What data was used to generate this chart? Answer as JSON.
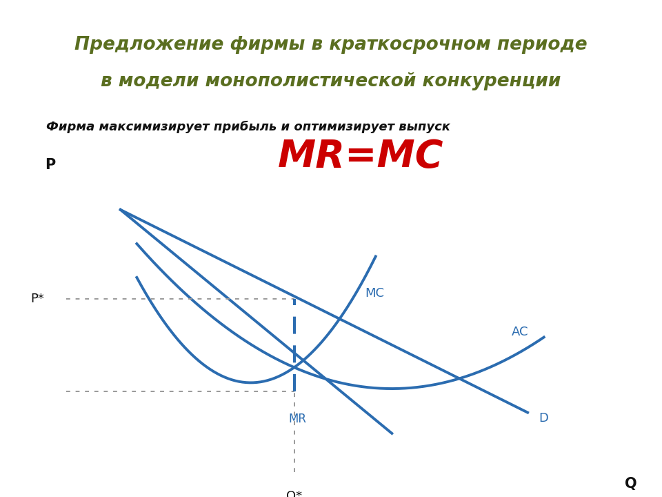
{
  "title_line1": "Предложение фирмы в краткосрочном периоде",
  "title_line2": "в модели монополистической конкуренции",
  "subtitle": "Фирма максимизирует прибыль и оптимизирует выпуск",
  "mr_mc_label": "MR=MC",
  "title_bg_color": "#e8edda",
  "title_text_color": "#5a6e20",
  "subtitle_color": "#111111",
  "mr_mc_color": "#cc0000",
  "curve_color": "#2b6cb0",
  "axis_color": "#111111",
  "dashed_color": "#999999",
  "bg_color": "#ffffff",
  "q_star": 0.42,
  "p_star": 0.58,
  "mr_level": 0.27,
  "xlim": [
    0,
    1.0
  ],
  "ylim": [
    0,
    1.0
  ]
}
